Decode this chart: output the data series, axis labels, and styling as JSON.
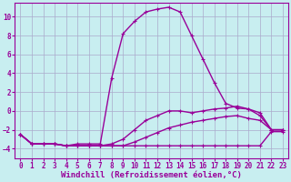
{
  "title": "",
  "xlabel": "Windchill (Refroidissement éolien,°C)",
  "ylabel": "",
  "bg_color": "#c8eef0",
  "grid_color": "#aaaacc",
  "line_color": "#990099",
  "xlim": [
    -0.5,
    23.5
  ],
  "ylim": [
    -5,
    11.5
  ],
  "xticks": [
    0,
    1,
    2,
    3,
    4,
    5,
    6,
    7,
    8,
    9,
    10,
    11,
    12,
    13,
    14,
    15,
    16,
    17,
    18,
    19,
    20,
    21,
    22,
    23
  ],
  "yticks": [
    -4,
    -2,
    0,
    2,
    4,
    6,
    8,
    10
  ],
  "curve1_x": [
    0,
    1,
    2,
    3,
    4,
    5,
    6,
    7,
    8,
    9,
    10,
    11,
    12,
    13,
    14,
    15,
    16,
    17,
    18,
    19,
    20,
    21,
    22,
    23
  ],
  "curve1_y": [
    -2.5,
    -3.5,
    -3.5,
    -3.5,
    -3.7,
    -3.7,
    -3.7,
    -3.7,
    -3.7,
    -3.7,
    -3.7,
    -3.7,
    -3.7,
    -3.7,
    -3.7,
    -3.7,
    -3.7,
    -3.7,
    -3.7,
    -3.7,
    -3.7,
    -3.7,
    -2.2,
    -2.2
  ],
  "curve2_x": [
    0,
    1,
    2,
    3,
    4,
    5,
    6,
    7,
    8,
    9,
    10,
    11,
    12,
    13,
    14,
    15,
    16,
    17,
    18,
    19,
    20,
    21,
    22,
    23
  ],
  "curve2_y": [
    -2.5,
    -3.5,
    -3.5,
    -3.5,
    -3.7,
    -3.7,
    -3.7,
    -3.7,
    -3.7,
    -3.7,
    -3.3,
    -2.8,
    -2.3,
    -1.8,
    -1.5,
    -1.2,
    -1.0,
    -0.8,
    -0.6,
    -0.5,
    -0.8,
    -1.0,
    -2.0,
    -2.0
  ],
  "curve3_x": [
    0,
    1,
    2,
    3,
    4,
    5,
    6,
    7,
    8,
    9,
    10,
    11,
    12,
    13,
    14,
    15,
    16,
    17,
    18,
    19,
    20,
    21,
    22,
    23
  ],
  "curve3_y": [
    -2.5,
    -3.5,
    -3.5,
    -3.5,
    -3.7,
    -3.7,
    -3.7,
    -3.7,
    -3.5,
    -3.0,
    -2.0,
    -1.0,
    -0.5,
    0.0,
    0.0,
    -0.2,
    0.0,
    0.2,
    0.3,
    0.5,
    0.2,
    -0.2,
    -2.0,
    -2.0
  ],
  "curve4_x": [
    0,
    1,
    2,
    3,
    4,
    5,
    6,
    7,
    8,
    9,
    10,
    11,
    12,
    13,
    14,
    15,
    16,
    17,
    18,
    19,
    20,
    21,
    22,
    23
  ],
  "curve4_y": [
    -2.5,
    -3.5,
    -3.5,
    -3.5,
    -3.7,
    -3.5,
    -3.5,
    -3.5,
    3.5,
    8.2,
    9.5,
    10.5,
    10.8,
    11.0,
    10.5,
    8.0,
    5.5,
    3.0,
    0.8,
    0.3,
    0.2,
    -0.5,
    -2.0,
    -2.0
  ],
  "marker": "+",
  "markersize": 3.5,
  "linewidth": 1.0,
  "tick_fontsize": 5.5,
  "label_fontsize": 6.5
}
